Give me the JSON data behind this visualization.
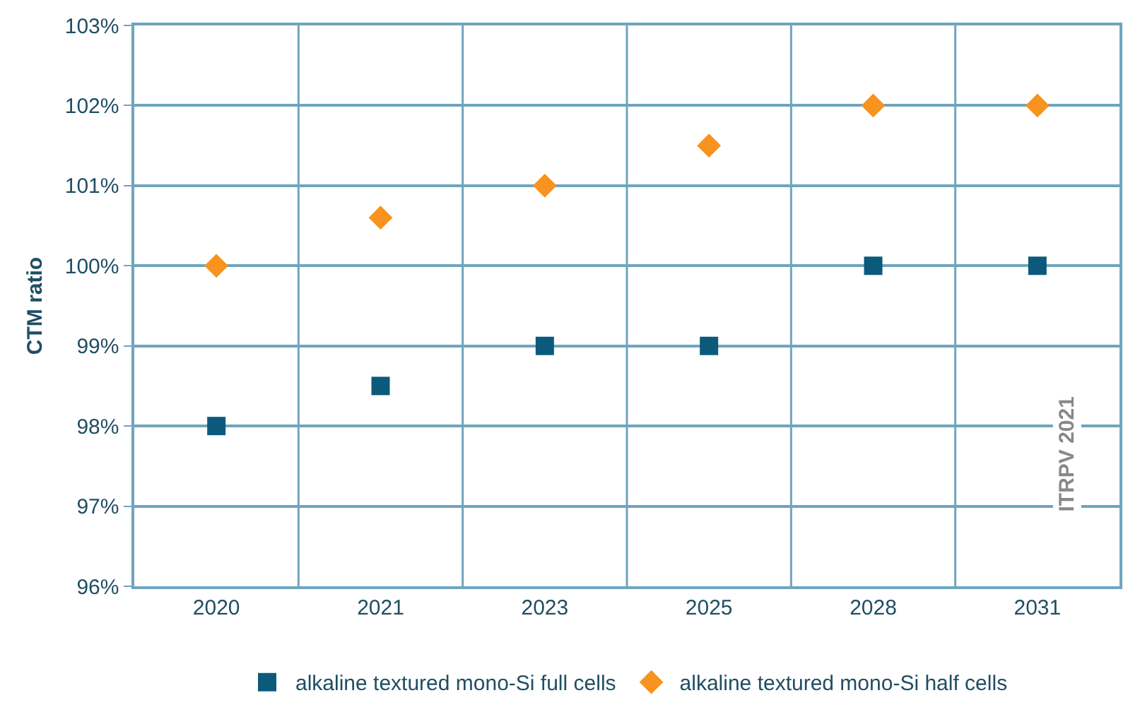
{
  "chart_data": {
    "type": "scatter",
    "ylabel": "CTM ratio",
    "categories": [
      "2020",
      "2021",
      "2023",
      "2025",
      "2028",
      "2031"
    ],
    "series": [
      {
        "name": "alkaline textured mono-Si full cells",
        "color": "#0b5a7c",
        "marker": "square",
        "values": [
          98,
          98.5,
          99,
          99,
          100,
          100
        ]
      },
      {
        "name": "alkaline textured mono-Si half cells",
        "color": "#f7931e",
        "marker": "diamond",
        "values": [
          100,
          100.6,
          101,
          101.5,
          102,
          102
        ]
      }
    ],
    "ylim": [
      96,
      103
    ],
    "yticks": [
      {
        "value": 96,
        "label": "96%"
      },
      {
        "value": 97,
        "label": "97%"
      },
      {
        "value": 98,
        "label": "98%"
      },
      {
        "value": 99,
        "label": "99%"
      },
      {
        "value": 100,
        "label": "100%"
      },
      {
        "value": 101,
        "label": "101%"
      },
      {
        "value": 102,
        "label": "102%"
      },
      {
        "value": 103,
        "label": "103%"
      }
    ],
    "grid": true,
    "legend": "bottom",
    "annotations": [
      "ITRPV 2021"
    ]
  }
}
